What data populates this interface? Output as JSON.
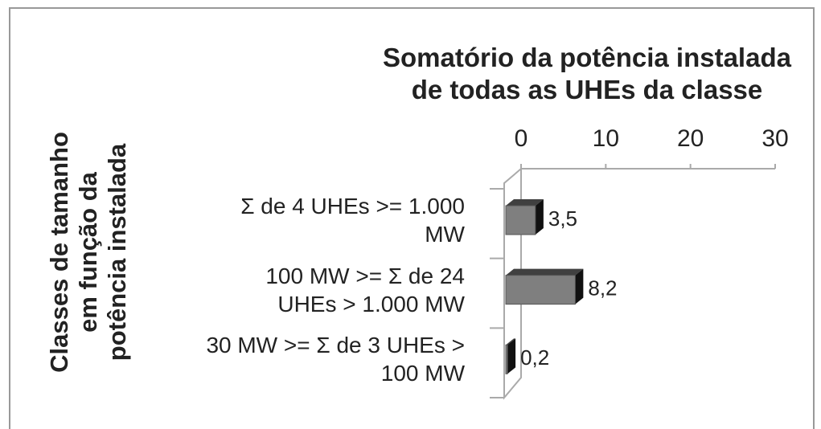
{
  "chart_data": {
    "type": "bar",
    "orientation": "horizontal",
    "title": "Somatório da potência instalada\nde todas as UHEs da classe",
    "y_label": "Classes de tamanho\nem função da\npotência instalada",
    "categories": [
      "Σ de 4 UHEs >= 1.000\nMW",
      "100 MW >= Σ de 24\nUHEs > 1.000 MW",
      "30 MW >= Σ de 3 UHEs >\n100 MW"
    ],
    "values": [
      3.5,
      8.2,
      0.2
    ],
    "value_labels": [
      "3,5",
      "8,2",
      "0,2"
    ],
    "color": "#7f7f7f",
    "xlim": [
      0,
      30
    ],
    "xticks": [
      0,
      10,
      20,
      30
    ]
  }
}
